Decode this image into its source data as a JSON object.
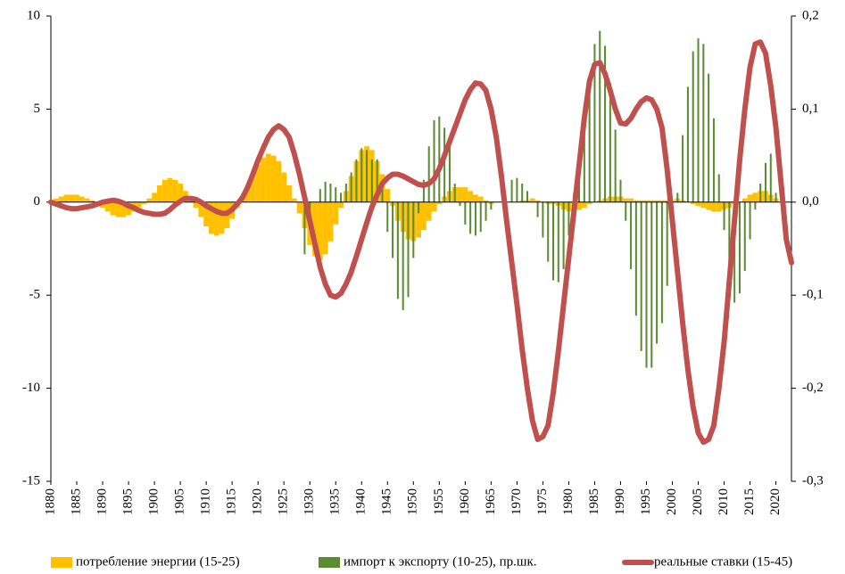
{
  "chart_data": {
    "type": "bar",
    "x": [
      1880,
      1881,
      1882,
      1883,
      1884,
      1885,
      1886,
      1887,
      1888,
      1889,
      1890,
      1891,
      1892,
      1893,
      1894,
      1895,
      1896,
      1897,
      1898,
      1899,
      1900,
      1901,
      1902,
      1903,
      1904,
      1905,
      1906,
      1907,
      1908,
      1909,
      1910,
      1911,
      1912,
      1913,
      1914,
      1915,
      1916,
      1917,
      1918,
      1919,
      1920,
      1921,
      1922,
      1923,
      1924,
      1925,
      1926,
      1927,
      1928,
      1929,
      1930,
      1931,
      1932,
      1933,
      1934,
      1935,
      1936,
      1937,
      1938,
      1939,
      1940,
      1941,
      1942,
      1943,
      1944,
      1945,
      1946,
      1947,
      1948,
      1949,
      1950,
      1951,
      1952,
      1953,
      1954,
      1955,
      1956,
      1957,
      1958,
      1959,
      1960,
      1961,
      1962,
      1963,
      1964,
      1965,
      1966,
      1967,
      1968,
      1969,
      1970,
      1971,
      1972,
      1973,
      1974,
      1975,
      1976,
      1977,
      1978,
      1979,
      1980,
      1981,
      1982,
      1983,
      1984,
      1985,
      1986,
      1987,
      1988,
      1989,
      1990,
      1991,
      1992,
      1993,
      1994,
      1995,
      1996,
      1997,
      1998,
      1999,
      2000,
      2001,
      2002,
      2003,
      2004,
      2005,
      2006,
      2007,
      2008,
      2009,
      2010,
      2011,
      2012,
      2013,
      2014,
      2015,
      2016,
      2017,
      2018,
      2019,
      2020,
      2021,
      2022,
      2023
    ],
    "xlim": [
      1880,
      2023
    ],
    "xticks": [
      1880,
      1885,
      1890,
      1895,
      1900,
      1905,
      1910,
      1915,
      1920,
      1925,
      1930,
      1935,
      1940,
      1945,
      1950,
      1955,
      1960,
      1965,
      1970,
      1975,
      1980,
      1985,
      1990,
      1995,
      2000,
      2005,
      2010,
      2015,
      2020
    ],
    "ylim": [
      -15,
      10
    ],
    "yticks": [
      10,
      5,
      0,
      -5,
      -10,
      -15
    ],
    "y2lim": [
      -0.3,
      0.2
    ],
    "y2ticks": [
      {
        "value": 0.2,
        "label": "0,2"
      },
      {
        "value": 0.1,
        "label": "0,1"
      },
      {
        "value": 0,
        "label": "0,0"
      },
      {
        "value": -0.1,
        "label": "-0,1"
      },
      {
        "value": -0.2,
        "label": "-0,2"
      },
      {
        "value": -0.3,
        "label": "-0,3"
      }
    ],
    "series": [
      {
        "name": "потребление энергии (15-25)",
        "type": "bar",
        "color": "#ffc000",
        "values": [
          0.1,
          0.2,
          0.3,
          0.4,
          0.4,
          0.4,
          0.3,
          0.2,
          0.1,
          -0.1,
          -0.3,
          -0.5,
          -0.7,
          -0.8,
          -0.8,
          -0.7,
          -0.5,
          -0.3,
          -0.1,
          0.2,
          0.5,
          0.9,
          1.2,
          1.3,
          1.2,
          1.0,
          0.6,
          0.2,
          -0.3,
          -0.8,
          -1.3,
          -1.7,
          -1.8,
          -1.7,
          -1.4,
          -0.9,
          -0.3,
          0.3,
          0.9,
          1.5,
          2.0,
          2.4,
          2.6,
          2.5,
          2.2,
          1.6,
          0.9,
          0.2,
          -0.6,
          -1.4,
          -2.3,
          -2.9,
          -3.1,
          -2.8,
          -2.1,
          -1.2,
          -0.3,
          0.6,
          1.4,
          2.2,
          2.8,
          3.0,
          2.8,
          2.2,
          1.5,
          0.7,
          -0.2,
          -1.0,
          -1.6,
          -2.0,
          -2.1,
          -1.9,
          -1.5,
          -1.0,
          -0.5,
          -0.1,
          0.3,
          0.6,
          0.8,
          0.8,
          0.8,
          0.6,
          0.4,
          0.3,
          0.1,
          -0.1,
          0,
          0,
          0,
          0,
          0,
          0.1,
          0.1,
          0.2,
          0.1,
          0,
          -0.1,
          -0.1,
          -0.2,
          -0.4,
          -0.5,
          -0.5,
          -0.4,
          -0.3,
          -0.1,
          0,
          0.1,
          0.2,
          0.3,
          0.3,
          0.3,
          0.2,
          0.2,
          0.1,
          0.1,
          0.1,
          0.1,
          0.1,
          0.1,
          0.1,
          0.1,
          0.2,
          0.1,
          0,
          -0.1,
          -0.2,
          -0.3,
          -0.4,
          -0.5,
          -0.5,
          -0.4,
          -0.3,
          -0.1,
          0,
          0.2,
          0.4,
          0.5,
          0.6,
          0.6,
          0.4,
          0.2,
          0,
          0,
          0
        ]
      },
      {
        "name": "импорт к экспорту (10-25), пр.шк.",
        "type": "bar",
        "color": "#5b8c32",
        "values": [
          0,
          0,
          0,
          0,
          0,
          0,
          0,
          0,
          0,
          0,
          0,
          0,
          0,
          0,
          0,
          0,
          0,
          0,
          0,
          0,
          0,
          0,
          0,
          0,
          0,
          0,
          0,
          0,
          0,
          0,
          0,
          0,
          0,
          0,
          0,
          0,
          0,
          0,
          0,
          0,
          0,
          0,
          0,
          0,
          0,
          0,
          0,
          0,
          0,
          -2.8,
          -1.2,
          0,
          0.7,
          1.1,
          1.0,
          0.8,
          0.5,
          1.0,
          1.6,
          2.3,
          2.9,
          2.8,
          2.3,
          2.3,
          0.7,
          -1.6,
          -3.0,
          -5.2,
          -5.8,
          -5.1,
          -3.0,
          -0.6,
          1.2,
          3.0,
          4.4,
          4.6,
          4.0,
          3.0,
          1.0,
          -0.2,
          -1.2,
          -1.7,
          -1.8,
          -1.6,
          -1.0,
          -0.4,
          0,
          0,
          0,
          1.2,
          1.3,
          1.0,
          0.6,
          0,
          -0.8,
          -1.9,
          -3.2,
          -4.2,
          -4.3,
          -3.6,
          -1.8,
          0.5,
          2.5,
          4.2,
          6.5,
          8.5,
          9.2,
          8.4,
          6.4,
          3.9,
          1.2,
          -1.0,
          -3.6,
          -6.1,
          -8.0,
          -8.9,
          -8.9,
          -7.6,
          -6.5,
          -4.5,
          -2.0,
          0.5,
          3.6,
          6.2,
          8.1,
          8.8,
          8.5,
          6.9,
          4.5,
          1.5,
          -1.5,
          -3.7,
          -5.4,
          -4.9,
          -3.7,
          -2.0,
          -0.4,
          1.0,
          2.1,
          2.6,
          0.5,
          0,
          0,
          0
        ]
      },
      {
        "name": "реальные ставки (15-45)",
        "type": "line",
        "axis": "y2",
        "color": "#c0504d",
        "values": [
          0.0,
          -0.002,
          -0.004,
          -0.006,
          -0.007,
          -0.007,
          -0.006,
          -0.005,
          -0.004,
          -0.002,
          0.0,
          0.001,
          0.002,
          0.001,
          -0.001,
          -0.004,
          -0.006,
          -0.009,
          -0.011,
          -0.012,
          -0.013,
          -0.013,
          -0.012,
          -0.008,
          -0.003,
          0.001,
          0.004,
          0.004,
          0.003,
          0.0,
          -0.004,
          -0.007,
          -0.01,
          -0.012,
          -0.012,
          -0.008,
          -0.002,
          0.005,
          0.016,
          0.03,
          0.045,
          0.058,
          0.07,
          0.078,
          0.082,
          0.078,
          0.07,
          0.052,
          0.03,
          0.005,
          -0.02,
          -0.045,
          -0.07,
          -0.088,
          -0.1,
          -0.102,
          -0.098,
          -0.088,
          -0.075,
          -0.058,
          -0.04,
          -0.022,
          -0.005,
          0.008,
          0.02,
          0.026,
          0.03,
          0.03,
          0.028,
          0.025,
          0.022,
          0.019,
          0.018,
          0.02,
          0.025,
          0.036,
          0.05,
          0.065,
          0.08,
          0.095,
          0.11,
          0.121,
          0.128,
          0.127,
          0.12,
          0.1,
          0.07,
          0.028,
          -0.02,
          -0.065,
          -0.11,
          -0.158,
          -0.2,
          -0.235,
          -0.255,
          -0.252,
          -0.24,
          -0.205,
          -0.16,
          -0.11,
          -0.06,
          -0.01,
          0.04,
          0.09,
          0.13,
          0.148,
          0.15,
          0.138,
          0.12,
          0.1,
          0.085,
          0.084,
          0.09,
          0.1,
          0.108,
          0.112,
          0.11,
          0.1,
          0.08,
          0.035,
          -0.02,
          -0.075,
          -0.13,
          -0.18,
          -0.22,
          -0.248,
          -0.258,
          -0.255,
          -0.24,
          -0.2,
          -0.15,
          -0.085,
          -0.02,
          0.045,
          0.1,
          0.145,
          0.17,
          0.172,
          0.16,
          0.125,
          0.08,
          0.02,
          -0.04,
          -0.065
        ]
      }
    ]
  }
}
